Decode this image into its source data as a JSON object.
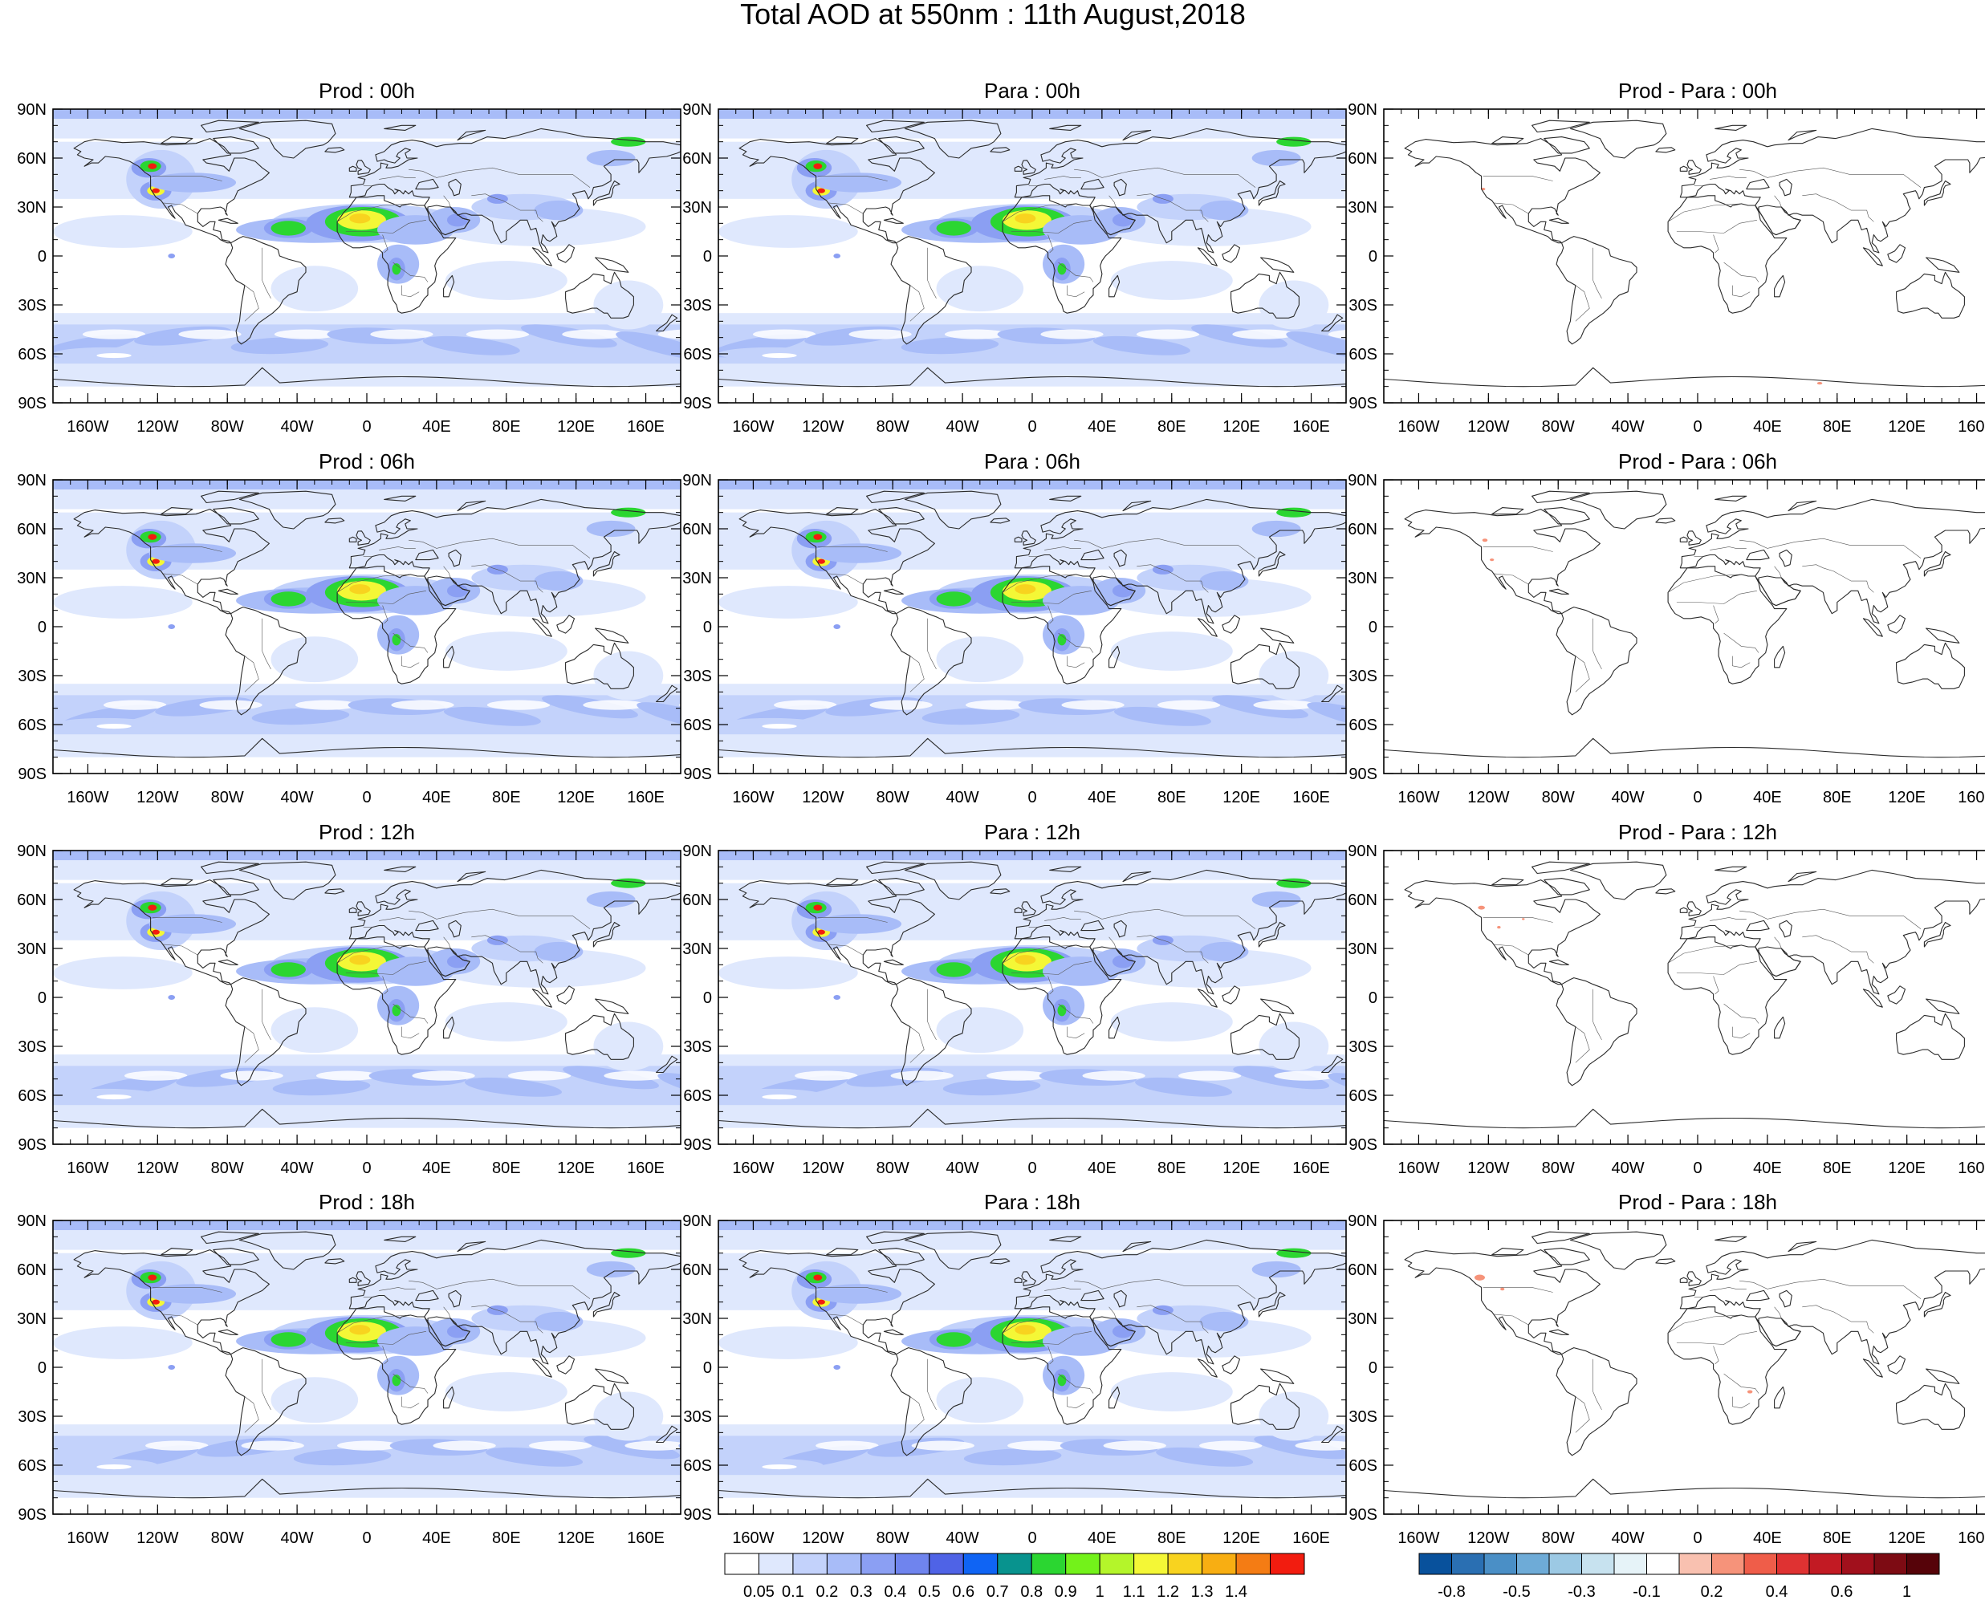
{
  "title": "Total AOD at 550nm : 11th August,2018",
  "panel_titles": [
    [
      "Prod : 00h",
      "Para : 00h",
      "Prod - Para : 00h"
    ],
    [
      "Prod : 06h",
      "Para : 06h",
      "Prod - Para : 06h"
    ],
    [
      "Prod : 12h",
      "Para : 12h",
      "Prod - Para : 12h"
    ],
    [
      "Prod : 18h",
      "Para : 18h",
      "Prod - Para : 18h"
    ]
  ],
  "lat_ticks": [
    "90N",
    "60N",
    "30N",
    "0",
    "30S",
    "60S",
    "90S"
  ],
  "lon_ticks": [
    "160W",
    "120W",
    "80W",
    "40W",
    "0",
    "40E",
    "80E",
    "120E",
    "160E"
  ],
  "aod_colorbar": {
    "labels": [
      "0.05",
      "0.1",
      "0.2",
      "0.3",
      "0.4",
      "0.5",
      "0.6",
      "0.7",
      "0.8",
      "0.9",
      "1",
      "1.1",
      "1.2",
      "1.3",
      "1.4"
    ],
    "colors": [
      "#ffffff",
      "#dfe8fd",
      "#c3d2fb",
      "#a8bcf8",
      "#8b9ff3",
      "#6f84ee",
      "#4f63e6",
      "#0f64f4",
      "#08938e",
      "#2bd631",
      "#73f21a",
      "#b4f52a",
      "#f4f736",
      "#f8d31f",
      "#f8ae12",
      "#f47c14",
      "#f21c0f"
    ]
  },
  "diff_colorbar": {
    "labels": [
      "-0.8",
      "-0.5",
      "-0.3",
      "-0.1",
      "0.2",
      "0.4",
      "0.6",
      "1"
    ],
    "colors": [
      "#08519c",
      "#2a6fb2",
      "#4a8fc6",
      "#6eabd7",
      "#9cc9e4",
      "#c7e2ef",
      "#e6f3f8",
      "#ffffff",
      "#f9c1b0",
      "#f6937a",
      "#ef5d49",
      "#df3232",
      "#c21a23",
      "#a1101c",
      "#7d0b13",
      "#560309"
    ]
  },
  "palette": {
    "ocean_base": "#dfe8fd",
    "ocean_mid": "#c3d2fb",
    "medium": "#a8bcf8",
    "strong": "#8b9ff3",
    "green": "#2bd631",
    "yellow": "#f4f736",
    "red": "#f21c0f",
    "diff_red": "#f6937a",
    "coast": "#2a2a2a"
  },
  "map_layers": {
    "fields": "aod-field",
    "difference": "difference-field",
    "coastline": "coastline"
  }
}
